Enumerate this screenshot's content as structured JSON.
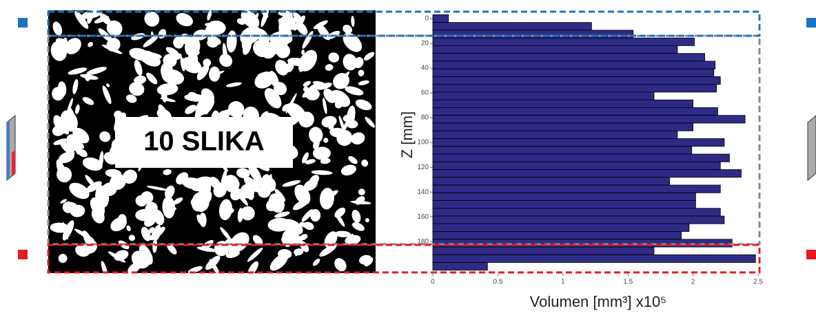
{
  "chart_data": {
    "type": "bar",
    "orientation": "horizontal",
    "image_label": "10 SLIKA",
    "y_label": "Z [mm]",
    "x_label": "Volumen  [mm³] x10⁵",
    "color": "#2e2a86",
    "z": [
      0,
      6.25,
      12.5,
      18.75,
      25,
      31.25,
      37.5,
      43.75,
      50,
      56.25,
      62.5,
      68.75,
      75,
      81.25,
      87.5,
      93.75,
      100,
      106.25,
      112.5,
      118.75,
      125,
      131.25,
      137.5,
      143.75,
      150,
      156.25,
      162.5,
      168.75,
      175,
      181.25,
      187.5,
      193.75,
      200
    ],
    "values": [
      0.12,
      1.22,
      1.54,
      2.01,
      1.88,
      2.09,
      2.17,
      2.16,
      2.21,
      2.18,
      1.7,
      2.0,
      2.19,
      2.4,
      2.0,
      1.88,
      2.24,
      1.99,
      2.28,
      2.21,
      2.37,
      1.82,
      2.21,
      2.02,
      2.02,
      2.21,
      2.24,
      1.97,
      1.91,
      2.3,
      1.7,
      2.48,
      0.42
    ],
    "xlim": [
      0,
      2.5
    ],
    "xticks": [
      0,
      0.5,
      1,
      1.5,
      2,
      2.5
    ],
    "ylim": [
      -5,
      206
    ],
    "yticks": [
      0,
      20,
      40,
      60,
      80,
      100,
      120,
      140,
      160,
      180
    ]
  }
}
